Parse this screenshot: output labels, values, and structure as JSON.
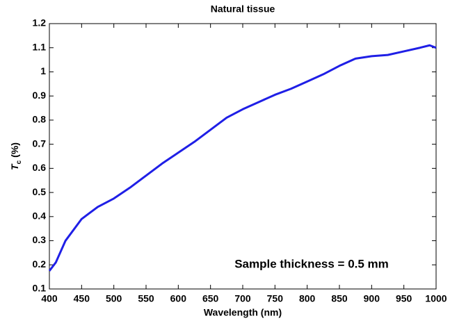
{
  "chart_data": {
    "type": "line",
    "title": "Natural tissue",
    "xlabel": "Wavelength (nm)",
    "ylabel_parts": [
      "T",
      "c",
      "(%)"
    ],
    "annotation": "Sample thickness  = 0.5 mm",
    "annotation_color": "#a0401a",
    "x": [
      400,
      410,
      425,
      450,
      475,
      500,
      525,
      550,
      575,
      600,
      625,
      650,
      675,
      700,
      725,
      750,
      775,
      800,
      825,
      850,
      875,
      900,
      925,
      950,
      975,
      990,
      1000
    ],
    "series": [
      {
        "color": "#1f1fe6",
        "values": [
          0.175,
          0.21,
          0.3,
          0.39,
          0.44,
          0.475,
          0.52,
          0.57,
          0.62,
          0.665,
          0.71,
          0.76,
          0.81,
          0.845,
          0.875,
          0.905,
          0.93,
          0.96,
          0.99,
          1.025,
          1.055,
          1.065,
          1.07,
          1.085,
          1.1,
          1.11,
          1.1
        ]
      }
    ],
    "xlim": [
      400,
      1000
    ],
    "ylim": [
      0.1,
      1.2
    ],
    "xticks": [
      400,
      450,
      500,
      550,
      600,
      650,
      700,
      750,
      800,
      850,
      900,
      950,
      1000
    ],
    "yticks": [
      0.1,
      0.2,
      0.3,
      0.4,
      0.5,
      0.6,
      0.7,
      0.8,
      0.9,
      1,
      1.1,
      1.2
    ],
    "grid": false
  }
}
